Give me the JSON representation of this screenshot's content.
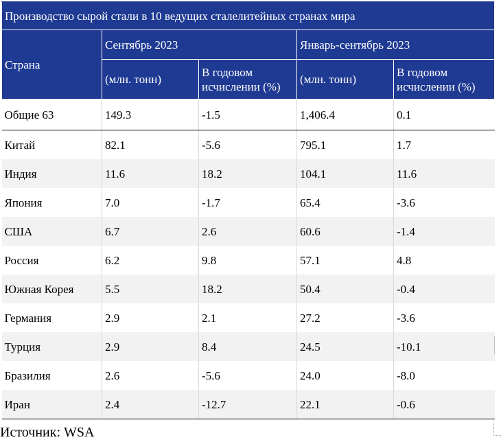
{
  "title": "Производство сырой стали в 10 ведущих сталелитейных странах мира",
  "headers": {
    "country": "Страна",
    "period1": "Сентябрь 2023",
    "period2": "Январь-сентябрь 2023",
    "unit": "(млн. тонн)",
    "yoy": "В годовом исчислении (%)"
  },
  "total": {
    "name": "Общие 63",
    "sep_value": "149.3",
    "sep_yoy": "-1.5",
    "ytd_value": "1,406.4",
    "ytd_yoy": "0.1"
  },
  "rows": [
    {
      "name": "Китай",
      "sep_value": "82.1",
      "sep_yoy": "-5.6",
      "ytd_value": "795.1",
      "ytd_yoy": "1.7"
    },
    {
      "name": "Индия",
      "sep_value": "11.6",
      "sep_yoy": "18.2",
      "ytd_value": "104.1",
      "ytd_yoy": "11.6"
    },
    {
      "name": "Япония",
      "sep_value": "7.0",
      "sep_yoy": "-1.7",
      "ytd_value": "65.4",
      "ytd_yoy": "-3.6"
    },
    {
      "name": "США",
      "sep_value": "6.7",
      "sep_yoy": "2.6",
      "ytd_value": "60.6",
      "ytd_yoy": "-1.4"
    },
    {
      "name": "Россия",
      "sep_value": "6.2",
      "sep_yoy": "9.8",
      "ytd_value": "57.1",
      "ytd_yoy": "4.8"
    },
    {
      "name": "Южная Корея",
      "sep_value": "5.5",
      "sep_yoy": "18.2",
      "ytd_value": "50.4",
      "ytd_yoy": "-0.4"
    },
    {
      "name": "Германия",
      "sep_value": "2.9",
      "sep_yoy": "2.1",
      "ytd_value": "27.2",
      "ytd_yoy": "-3.6"
    },
    {
      "name": "Турция",
      "sep_value": "2.9",
      "sep_yoy": "8.4",
      "ytd_value": "24.5",
      "ytd_yoy": "-10.1"
    },
    {
      "name": "Бразилия",
      "sep_value": "2.6",
      "sep_yoy": "-5.6",
      "ytd_value": "24.0",
      "ytd_yoy": "-8.0"
    },
    {
      "name": "Иран",
      "sep_value": "2.4",
      "sep_yoy": "-12.7",
      "ytd_value": "22.1",
      "ytd_yoy": "-0.6"
    }
  ],
  "source": "Источник: WSA",
  "colors": {
    "header_bg": "#1f3a93",
    "header_text": "#ffffff",
    "stripe": "#f2f2f2"
  }
}
